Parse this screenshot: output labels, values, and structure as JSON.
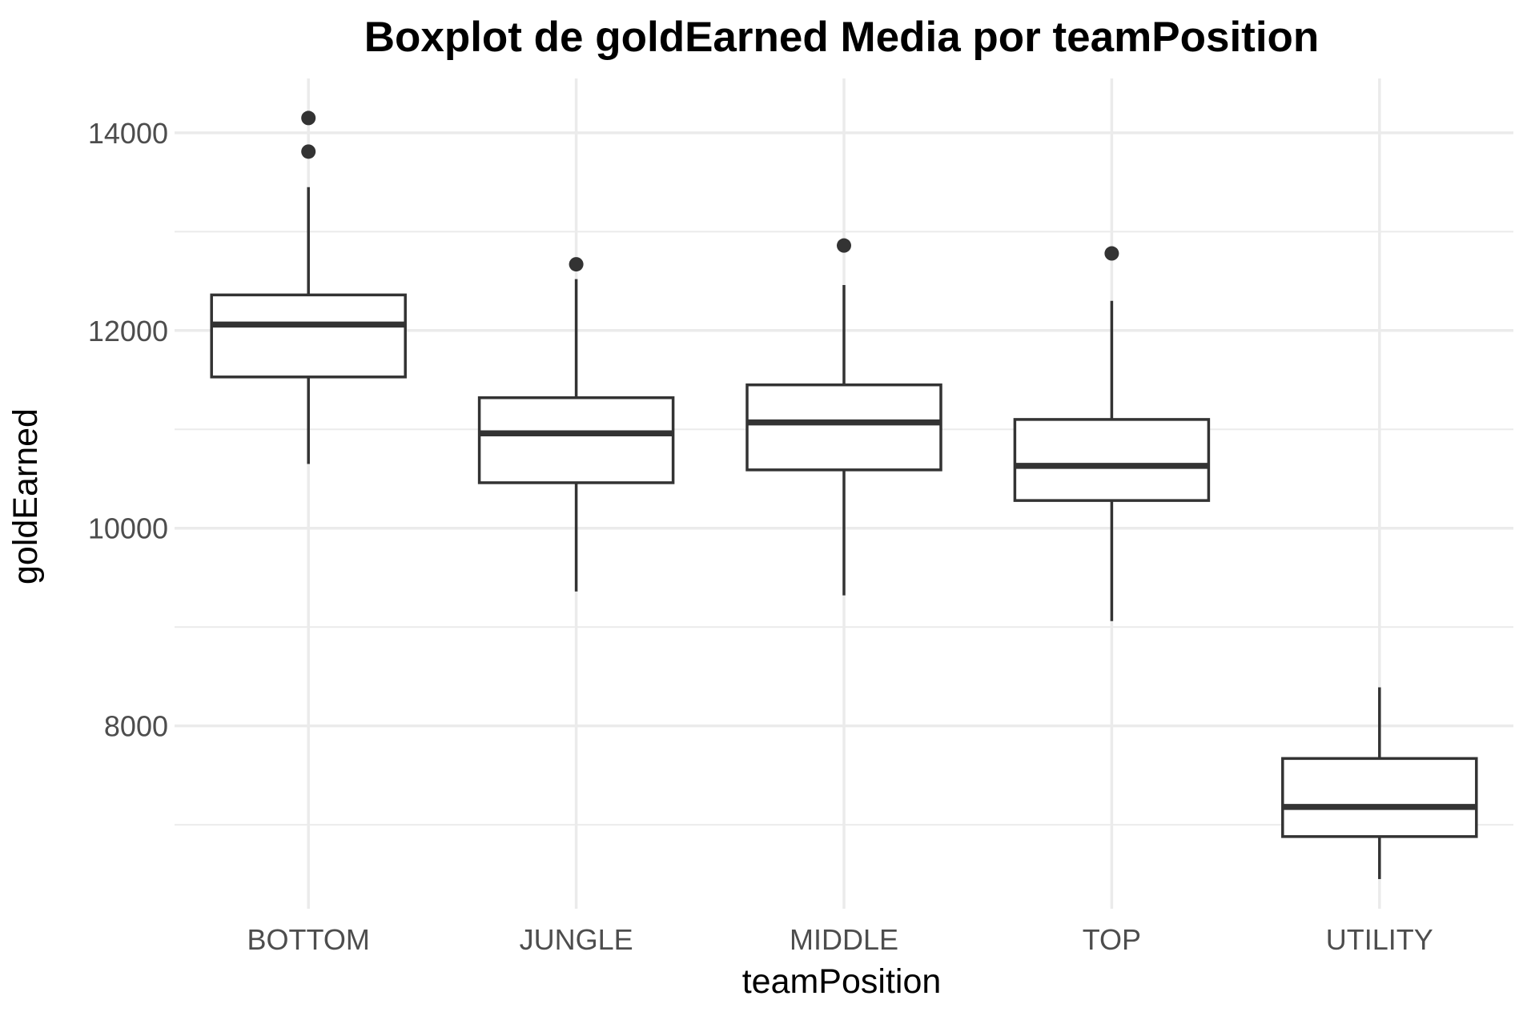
{
  "chart_data": {
    "type": "boxplot",
    "title": "Boxplot de goldEarned Media por teamPosition",
    "xlabel": "teamPosition",
    "ylabel": "goldEarned",
    "ylim": [
      6150,
      14550
    ],
    "yticks": [
      8000,
      10000,
      12000,
      14000
    ],
    "yticks_minor": [
      7000,
      9000,
      11000,
      13000
    ],
    "grid": true,
    "colors": {
      "box_stroke": "#333333",
      "box_fill": "#ffffff",
      "grid": "#ebebeb",
      "tick_text": "#4d4d4d",
      "background": "#ffffff"
    },
    "categories": [
      "BOTTOM",
      "JUNGLE",
      "MIDDLE",
      "TOP",
      "UTILITY"
    ],
    "boxes": [
      {
        "category": "BOTTOM",
        "whisker_low": 10650,
        "q1": 11530,
        "median": 12060,
        "q3": 12360,
        "whisker_high": 13450,
        "outliers": [
          13810,
          14150
        ]
      },
      {
        "category": "JUNGLE",
        "whisker_low": 9360,
        "q1": 10460,
        "median": 10960,
        "q3": 11320,
        "whisker_high": 12520,
        "outliers": [
          12670
        ]
      },
      {
        "category": "MIDDLE",
        "whisker_low": 9320,
        "q1": 10590,
        "median": 11070,
        "q3": 11450,
        "whisker_high": 12460,
        "outliers": [
          12860
        ]
      },
      {
        "category": "TOP",
        "whisker_low": 9060,
        "q1": 10280,
        "median": 10630,
        "q3": 11100,
        "whisker_high": 12300,
        "outliers": [
          12780
        ]
      },
      {
        "category": "UTILITY",
        "whisker_low": 6450,
        "q1": 6880,
        "median": 7180,
        "q3": 7670,
        "whisker_high": 8390,
        "outliers": []
      }
    ]
  }
}
